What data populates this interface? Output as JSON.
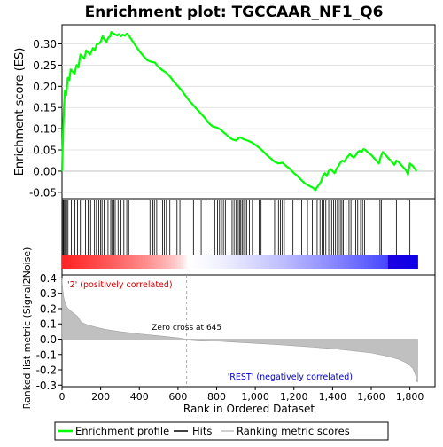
{
  "chart_data": {
    "type": "line",
    "title": "Enrichment plot: TGCCAAR_NF1_Q6",
    "es_panel": {
      "ylabel": "Enrichment score (ES)",
      "yticks": [
        "-0.05",
        "0.00",
        "0.05",
        "0.10",
        "0.15",
        "0.20",
        "0.25",
        "0.30"
      ],
      "ylim": [
        -0.065,
        0.345
      ],
      "series_color": "#00ff00",
      "es_points": [
        [
          0,
          0.0
        ],
        [
          3,
          0.05
        ],
        [
          6,
          0.1
        ],
        [
          10,
          0.15
        ],
        [
          15,
          0.19
        ],
        [
          22,
          0.18
        ],
        [
          30,
          0.22
        ],
        [
          38,
          0.215
        ],
        [
          45,
          0.24
        ],
        [
          55,
          0.235
        ],
        [
          65,
          0.23
        ],
        [
          75,
          0.25
        ],
        [
          85,
          0.245
        ],
        [
          95,
          0.275
        ],
        [
          105,
          0.27
        ],
        [
          115,
          0.265
        ],
        [
          125,
          0.285
        ],
        [
          135,
          0.28
        ],
        [
          145,
          0.275
        ],
        [
          160,
          0.29
        ],
        [
          170,
          0.285
        ],
        [
          180,
          0.3
        ],
        [
          190,
          0.3
        ],
        [
          200,
          0.305
        ],
        [
          210,
          0.318
        ],
        [
          220,
          0.31
        ],
        [
          230,
          0.305
        ],
        [
          240,
          0.315
        ],
        [
          250,
          0.318
        ],
        [
          255,
          0.328
        ],
        [
          265,
          0.325
        ],
        [
          275,
          0.322
        ],
        [
          285,
          0.32
        ],
        [
          295,
          0.323
        ],
        [
          305,
          0.318
        ],
        [
          315,
          0.322
        ],
        [
          325,
          0.319
        ],
        [
          335,
          0.324
        ],
        [
          345,
          0.32
        ],
        [
          360,
          0.31
        ],
        [
          380,
          0.296
        ],
        [
          400,
          0.283
        ],
        [
          420,
          0.272
        ],
        [
          440,
          0.262
        ],
        [
          460,
          0.258
        ],
        [
          480,
          0.256
        ],
        [
          500,
          0.245
        ],
        [
          520,
          0.238
        ],
        [
          540,
          0.232
        ],
        [
          560,
          0.222
        ],
        [
          580,
          0.21
        ],
        [
          600,
          0.2
        ],
        [
          620,
          0.19
        ],
        [
          640,
          0.177
        ],
        [
          660,
          0.165
        ],
        [
          680,
          0.155
        ],
        [
          700,
          0.145
        ],
        [
          720,
          0.135
        ],
        [
          740,
          0.125
        ],
        [
          760,
          0.113
        ],
        [
          780,
          0.105
        ],
        [
          800,
          0.103
        ],
        [
          820,
          0.098
        ],
        [
          840,
          0.09
        ],
        [
          860,
          0.082
        ],
        [
          880,
          0.075
        ],
        [
          900,
          0.072
        ],
        [
          920,
          0.08
        ],
        [
          940,
          0.075
        ],
        [
          960,
          0.072
        ],
        [
          980,
          0.068
        ],
        [
          1000,
          0.062
        ],
        [
          1020,
          0.055
        ],
        [
          1040,
          0.047
        ],
        [
          1060,
          0.038
        ],
        [
          1080,
          0.03
        ],
        [
          1100,
          0.022
        ],
        [
          1120,
          0.018
        ],
        [
          1140,
          0.02
        ],
        [
          1160,
          0.012
        ],
        [
          1180,
          0.005
        ],
        [
          1200,
          -0.005
        ],
        [
          1220,
          -0.012
        ],
        [
          1240,
          -0.022
        ],
        [
          1260,
          -0.03
        ],
        [
          1280,
          -0.035
        ],
        [
          1300,
          -0.04
        ],
        [
          1310,
          -0.045
        ],
        [
          1320,
          -0.038
        ],
        [
          1330,
          -0.032
        ],
        [
          1340,
          -0.025
        ],
        [
          1350,
          -0.01
        ],
        [
          1360,
          -0.005
        ],
        [
          1370,
          -0.012
        ],
        [
          1380,
          0.0
        ],
        [
          1390,
          0.005
        ],
        [
          1400,
          0.0
        ],
        [
          1410,
          -0.005
        ],
        [
          1420,
          0.005
        ],
        [
          1430,
          0.012
        ],
        [
          1440,
          0.02
        ],
        [
          1450,
          0.025
        ],
        [
          1460,
          0.022
        ],
        [
          1470,
          0.03
        ],
        [
          1480,
          0.035
        ],
        [
          1490,
          0.04
        ],
        [
          1500,
          0.035
        ],
        [
          1510,
          0.032
        ],
        [
          1520,
          0.038
        ],
        [
          1530,
          0.045
        ],
        [
          1540,
          0.048
        ],
        [
          1550,
          0.045
        ],
        [
          1560,
          0.052
        ],
        [
          1570,
          0.05
        ],
        [
          1580,
          0.045
        ],
        [
          1600,
          0.038
        ],
        [
          1620,
          0.028
        ],
        [
          1640,
          0.018
        ],
        [
          1650,
          0.035
        ],
        [
          1660,
          0.045
        ],
        [
          1670,
          0.04
        ],
        [
          1690,
          0.03
        ],
        [
          1710,
          0.02
        ],
        [
          1720,
          0.015
        ],
        [
          1730,
          0.025
        ],
        [
          1740,
          0.022
        ],
        [
          1760,
          0.012
        ],
        [
          1780,
          0.002
        ],
        [
          1790,
          -0.008
        ],
        [
          1800,
          0.018
        ],
        [
          1815,
          0.012
        ],
        [
          1828,
          0.004
        ],
        [
          1835,
          0.0
        ]
      ],
      "hit_positions": [
        5,
        9,
        14,
        19,
        24,
        31,
        48,
        66,
        80,
        95,
        103,
        122,
        135,
        148,
        168,
        178,
        190,
        200,
        207,
        218,
        238,
        252,
        258,
        268,
        275,
        290,
        305,
        320,
        335,
        345,
        455,
        470,
        478,
        490,
        520,
        530,
        540,
        558,
        595,
        610,
        680,
        720,
        745,
        790,
        805,
        815,
        825,
        835,
        845,
        880,
        890,
        900,
        912,
        920,
        925,
        932,
        940,
        948,
        955,
        970,
        985,
        1020,
        1030,
        1100,
        1120,
        1130,
        1140,
        1150,
        1195,
        1240,
        1270,
        1295,
        1320,
        1335,
        1345,
        1355,
        1365,
        1380,
        1395,
        1405,
        1415,
        1425,
        1430,
        1440,
        1448,
        1455,
        1470,
        1485,
        1495,
        1520,
        1530,
        1545,
        1555,
        1565,
        1645,
        1652,
        1730,
        1800
      ]
    },
    "metric_panel": {
      "ylabel": "Ranked list metric (Signal2Noise)",
      "yticks": [
        "-0.3",
        "-0.2",
        "-0.1",
        "0.0",
        "0.1",
        "0.2",
        "0.3",
        "0.4"
      ],
      "ylim": [
        -0.31,
        0.42
      ],
      "xlabel": "Rank in Ordered Dataset",
      "xticks": [
        "0",
        "200",
        "400",
        "600",
        "800",
        "1,000",
        "1,200",
        "1,400",
        "1,600",
        "1,800"
      ],
      "xlim": [
        0,
        1930
      ],
      "n_genes": 1840,
      "zero_cross_rank": 645,
      "zero_cross_text": "Zero cross at 645",
      "pos_label": "'2' (positively correlated)",
      "neg_label": "'REST' (negatively correlated)",
      "metric_profile": [
        [
          0,
          0.4
        ],
        [
          3,
          0.33
        ],
        [
          8,
          0.28
        ],
        [
          15,
          0.24
        ],
        [
          25,
          0.21
        ],
        [
          40,
          0.19
        ],
        [
          60,
          0.17
        ],
        [
          80,
          0.15
        ],
        [
          100,
          0.11
        ],
        [
          130,
          0.095
        ],
        [
          170,
          0.08
        ],
        [
          220,
          0.065
        ],
        [
          300,
          0.05
        ],
        [
          400,
          0.035
        ],
        [
          500,
          0.022
        ],
        [
          600,
          0.008
        ],
        [
          645,
          0.0
        ],
        [
          700,
          -0.005
        ],
        [
          800,
          -0.012
        ],
        [
          900,
          -0.02
        ],
        [
          1000,
          -0.027
        ],
        [
          1100,
          -0.035
        ],
        [
          1200,
          -0.043
        ],
        [
          1300,
          -0.052
        ],
        [
          1400,
          -0.062
        ],
        [
          1500,
          -0.075
        ],
        [
          1600,
          -0.09
        ],
        [
          1680,
          -0.11
        ],
        [
          1740,
          -0.13
        ],
        [
          1790,
          -0.16
        ],
        [
          1815,
          -0.19
        ],
        [
          1828,
          -0.23
        ],
        [
          1835,
          -0.275
        ],
        [
          1840,
          -0.28
        ]
      ]
    },
    "legend": {
      "items": [
        {
          "label": "Enrichment profile",
          "color": "#00ff00"
        },
        {
          "label": "Hits",
          "color": "#000000"
        },
        {
          "label": "Ranking metric scores",
          "color": "#c0c0c0"
        }
      ]
    }
  }
}
